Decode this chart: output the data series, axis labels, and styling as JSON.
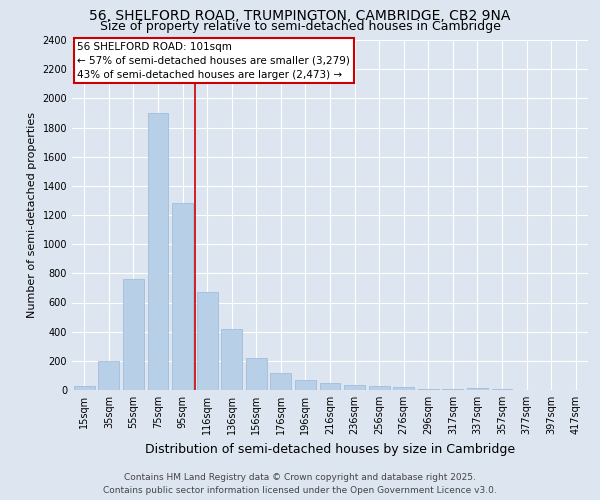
{
  "title_line1": "56, SHELFORD ROAD, TRUMPINGTON, CAMBRIDGE, CB2 9NA",
  "title_line2": "Size of property relative to semi-detached houses in Cambridge",
  "xlabel": "Distribution of semi-detached houses by size in Cambridge",
  "ylabel": "Number of semi-detached properties",
  "background_color": "#dde6f0",
  "bar_color": "#b8cfe8",
  "bar_edge_color": "#9ab8d8",
  "vline_color": "#cc0000",
  "vline_x": 4.5,
  "annotation_line1": "56 SHELFORD ROAD: 101sqm",
  "annotation_line2": "← 57% of semi-detached houses are smaller (3,279)",
  "annotation_line3": "43% of semi-detached houses are larger (2,473) →",
  "annotation_box_color": "#ffffff",
  "annotation_box_edge": "#cc0000",
  "categories": [
    "15sqm",
    "35sqm",
    "55sqm",
    "75sqm",
    "95sqm",
    "116sqm",
    "136sqm",
    "156sqm",
    "176sqm",
    "196sqm",
    "216sqm",
    "236sqm",
    "256sqm",
    "276sqm",
    "296sqm",
    "317sqm",
    "337sqm",
    "357sqm",
    "377sqm",
    "397sqm",
    "417sqm"
  ],
  "values": [
    30,
    200,
    760,
    1900,
    1280,
    670,
    420,
    220,
    120,
    70,
    50,
    35,
    25,
    20,
    10,
    10,
    15,
    5,
    3,
    2,
    1
  ],
  "ylim": [
    0,
    2400
  ],
  "yticks": [
    0,
    200,
    400,
    600,
    800,
    1000,
    1200,
    1400,
    1600,
    1800,
    2000,
    2200,
    2400
  ],
  "grid_color": "#ffffff",
  "footer_line1": "Contains HM Land Registry data © Crown copyright and database right 2025.",
  "footer_line2": "Contains public sector information licensed under the Open Government Licence v3.0.",
  "title_fontsize": 10,
  "subtitle_fontsize": 9,
  "xlabel_fontsize": 9,
  "ylabel_fontsize": 8,
  "tick_fontsize": 7,
  "footer_fontsize": 6.5,
  "annot_fontsize": 7.5
}
